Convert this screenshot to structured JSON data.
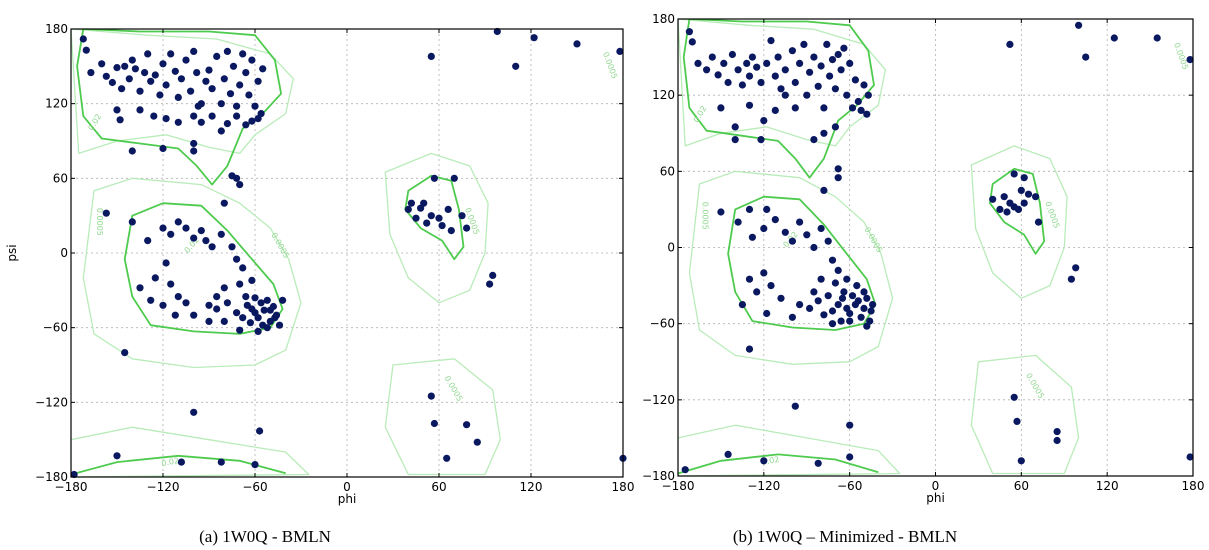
{
  "chart_data": [
    {
      "type": "scatter",
      "caption": "(a) 1W0Q - BMLN",
      "xlabel": "phi",
      "ylabel": "psi",
      "xlim": [
        -180,
        180
      ],
      "ylim": [
        -180,
        180
      ],
      "xticks": [
        -180,
        -120,
        -60,
        0,
        60,
        120,
        180
      ],
      "yticks": [
        -180,
        -120,
        -60,
        0,
        60,
        120,
        180
      ],
      "grid": true,
      "contour_labels": [
        "0.02",
        "0.0005"
      ],
      "colors": {
        "points": "#0a1860",
        "contour_inner": "#4ecb4e",
        "contour_outer": "#b9ecb9"
      },
      "points": [
        [
          -172,
          172
        ],
        [
          -170,
          163
        ],
        [
          -167,
          145
        ],
        [
          -160,
          152
        ],
        [
          -157,
          142
        ],
        [
          -153,
          137
        ],
        [
          -150,
          149
        ],
        [
          -147,
          132
        ],
        [
          -145,
          150
        ],
        [
          -142,
          140
        ],
        [
          -140,
          155
        ],
        [
          -138,
          148
        ],
        [
          -135,
          130
        ],
        [
          -132,
          145
        ],
        [
          -130,
          160
        ],
        [
          -128,
          138
        ],
        [
          -125,
          143
        ],
        [
          -122,
          127
        ],
        [
          -120,
          152
        ],
        [
          -118,
          135
        ],
        [
          -115,
          160
        ],
        [
          -112,
          146
        ],
        [
          -110,
          125
        ],
        [
          -108,
          140
        ],
        [
          -105,
          155
        ],
        [
          -102,
          130
        ],
        [
          -100,
          162
        ],
        [
          -98,
          145
        ],
        [
          -95,
          120
        ],
        [
          -92,
          138
        ],
        [
          -90,
          147
        ],
        [
          -88,
          132
        ],
        [
          -85,
          158
        ],
        [
          -82,
          120
        ],
        [
          -80,
          140
        ],
        [
          -78,
          162
        ],
        [
          -76,
          128
        ],
        [
          -74,
          150
        ],
        [
          -72,
          118
        ],
        [
          -70,
          135
        ],
        [
          -68,
          160
        ],
        [
          -66,
          145
        ],
        [
          -64,
          127
        ],
        [
          -62,
          155
        ],
        [
          -60,
          118
        ],
        [
          -58,
          138
        ],
        [
          -56,
          112
        ],
        [
          -55,
          148
        ],
        [
          -72,
          110
        ],
        [
          -66,
          103
        ],
        [
          -62,
          106
        ],
        [
          -58,
          108
        ],
        [
          -100,
          110
        ],
        [
          -95,
          105
        ],
        [
          -110,
          105
        ],
        [
          -118,
          108
        ],
        [
          -126,
          110
        ],
        [
          -135,
          115
        ],
        [
          -148,
          107
        ],
        [
          -150,
          115
        ],
        [
          -97,
          118
        ],
        [
          -88,
          110
        ],
        [
          -78,
          104
        ],
        [
          -82,
          98
        ],
        [
          -100,
          88
        ],
        [
          -100,
          82
        ],
        [
          -120,
          84
        ],
        [
          -140,
          82
        ],
        [
          -75,
          62
        ],
        [
          -72,
          60
        ],
        [
          -70,
          55
        ],
        [
          -80,
          40
        ],
        [
          -157,
          32
        ],
        [
          -140,
          25
        ],
        [
          -130,
          10
        ],
        [
          -120,
          20
        ],
        [
          -115,
          15
        ],
        [
          -110,
          25
        ],
        [
          -105,
          20
        ],
        [
          -100,
          12
        ],
        [
          -95,
          18
        ],
        [
          -92,
          10
        ],
        [
          -88,
          5
        ],
        [
          -82,
          15
        ],
        [
          -75,
          5
        ],
        [
          -72,
          -5
        ],
        [
          -68,
          -12
        ],
        [
          -62,
          -22
        ],
        [
          -70,
          -25
        ],
        [
          -80,
          -28
        ],
        [
          -85,
          -35
        ],
        [
          -90,
          -42
        ],
        [
          -100,
          -50
        ],
        [
          -105,
          -40
        ],
        [
          -110,
          -35
        ],
        [
          -115,
          -25
        ],
        [
          -118,
          -8
        ],
        [
          -125,
          -20
        ],
        [
          -128,
          -38
        ],
        [
          -135,
          -28
        ],
        [
          -120,
          -42
        ],
        [
          -112,
          -50
        ],
        [
          -90,
          -55
        ],
        [
          -85,
          -45
        ],
        [
          -78,
          -40
        ],
        [
          -72,
          -48
        ],
        [
          -68,
          -52
        ],
        [
          -65,
          -42
        ],
        [
          -62,
          -45
        ],
        [
          -60,
          -48
        ],
        [
          -58,
          -52
        ],
        [
          -56,
          -40
        ],
        [
          -54,
          -46
        ],
        [
          -52,
          -38
        ],
        [
          -50,
          -55
        ],
        [
          -48,
          -43
        ],
        [
          -46,
          -50
        ],
        [
          -44,
          -58
        ],
        [
          -60,
          -36
        ],
        [
          -63,
          -56
        ],
        [
          -55,
          -58
        ],
        [
          -50,
          -46
        ],
        [
          -47,
          -52
        ],
        [
          -52,
          -60
        ],
        [
          -42,
          -38
        ],
        [
          -58,
          -63
        ],
        [
          -66,
          -35
        ],
        [
          -70,
          -62
        ],
        [
          -80,
          -55
        ],
        [
          -145,
          -80
        ],
        [
          40,
          35
        ],
        [
          42,
          40
        ],
        [
          45,
          28
        ],
        [
          48,
          36
        ],
        [
          50,
          40
        ],
        [
          52,
          24
        ],
        [
          55,
          30
        ],
        [
          57,
          60
        ],
        [
          60,
          28
        ],
        [
          62,
          22
        ],
        [
          66,
          35
        ],
        [
          70,
          60
        ],
        [
          75,
          30
        ],
        [
          68,
          18
        ],
        [
          78,
          20
        ],
        [
          55,
          158
        ],
        [
          98,
          178
        ],
        [
          110,
          150
        ],
        [
          122,
          173
        ],
        [
          150,
          168
        ],
        [
          178,
          162
        ],
        [
          95,
          -18
        ],
        [
          93,
          -25
        ],
        [
          -100,
          -128
        ],
        [
          -57,
          -143
        ],
        [
          -150,
          -163
        ],
        [
          -108,
          -168
        ],
        [
          -82,
          -168
        ],
        [
          -60,
          -170
        ],
        [
          -178,
          -178
        ],
        [
          55,
          -115
        ],
        [
          57,
          -137
        ],
        [
          65,
          -165
        ],
        [
          78,
          -138
        ],
        [
          85,
          -152
        ],
        [
          180,
          -165
        ]
      ]
    },
    {
      "type": "scatter",
      "caption": "(b) 1W0Q – Minimized - BMLN",
      "xlabel": "phi",
      "ylabel": "",
      "xlim": [
        -180,
        180
      ],
      "ylim": [
        -180,
        180
      ],
      "xticks": [
        -180,
        -120,
        -60,
        0,
        60,
        120,
        180
      ],
      "yticks": [
        -180,
        -120,
        -60,
        0,
        60,
        120,
        180
      ],
      "grid": true,
      "contour_labels": [
        "0.02",
        "0.0005"
      ],
      "colors": {
        "points": "#0a1860",
        "contour_inner": "#4ecb4e",
        "contour_outer": "#b9ecb9"
      },
      "points": [
        [
          -172,
          170
        ],
        [
          -170,
          162
        ],
        [
          -166,
          145
        ],
        [
          -160,
          140
        ],
        [
          -156,
          150
        ],
        [
          -152,
          136
        ],
        [
          -148,
          145
        ],
        [
          -145,
          130
        ],
        [
          -142,
          152
        ],
        [
          -138,
          140
        ],
        [
          -135,
          128
        ],
        [
          -132,
          145
        ],
        [
          -130,
          135
        ],
        [
          -128,
          150
        ],
        [
          -125,
          142
        ],
        [
          -122,
          130
        ],
        [
          -118,
          145
        ],
        [
          -115,
          163
        ],
        [
          -112,
          135
        ],
        [
          -110,
          150
        ],
        [
          -108,
          125
        ],
        [
          -105,
          140
        ],
        [
          -100,
          155
        ],
        [
          -98,
          130
        ],
        [
          -95,
          145
        ],
        [
          -92,
          160
        ],
        [
          -90,
          120
        ],
        [
          -88,
          138
        ],
        [
          -85,
          150
        ],
        [
          -82,
          127
        ],
        [
          -80,
          143
        ],
        [
          -78,
          110
        ],
        [
          -76,
          160
        ],
        [
          -74,
          135
        ],
        [
          -72,
          148
        ],
        [
          -70,
          125
        ],
        [
          -68,
          152
        ],
        [
          -66,
          140
        ],
        [
          -64,
          157
        ],
        [
          -62,
          120
        ],
        [
          -60,
          145
        ],
        [
          -58,
          110
        ],
        [
          -56,
          132
        ],
        [
          -54,
          115
        ],
        [
          -52,
          108
        ],
        [
          -50,
          128
        ],
        [
          -48,
          105
        ],
        [
          -47,
          120
        ],
        [
          -70,
          95
        ],
        [
          -78,
          90
        ],
        [
          -85,
          85
        ],
        [
          -98,
          110
        ],
        [
          -105,
          120
        ],
        [
          -112,
          108
        ],
        [
          -120,
          100
        ],
        [
          -130,
          112
        ],
        [
          -140,
          95
        ],
        [
          -150,
          110
        ],
        [
          -122,
          85
        ],
        [
          -140,
          85
        ],
        [
          -68,
          62
        ],
        [
          -68,
          55
        ],
        [
          -78,
          45
        ],
        [
          -150,
          28
        ],
        [
          -138,
          20
        ],
        [
          -130,
          30
        ],
        [
          -128,
          8
        ],
        [
          -120,
          15
        ],
        [
          -118,
          30
        ],
        [
          -112,
          22
        ],
        [
          -105,
          12
        ],
        [
          -100,
          5
        ],
        [
          -95,
          20
        ],
        [
          -90,
          10
        ],
        [
          -85,
          0
        ],
        [
          -80,
          15
        ],
        [
          -75,
          5
        ],
        [
          -72,
          -10
        ],
        [
          -68,
          -18
        ],
        [
          -62,
          -25
        ],
        [
          -70,
          -28
        ],
        [
          -80,
          -25
        ],
        [
          -85,
          -35
        ],
        [
          -95,
          -45
        ],
        [
          -100,
          -55
        ],
        [
          -108,
          -40
        ],
        [
          -115,
          -30
        ],
        [
          -120,
          -20
        ],
        [
          -125,
          -35
        ],
        [
          -130,
          -25
        ],
        [
          -135,
          -45
        ],
        [
          -118,
          -52
        ],
        [
          -88,
          -48
        ],
        [
          -82,
          -42
        ],
        [
          -75,
          -38
        ],
        [
          -72,
          -50
        ],
        [
          -68,
          -45
        ],
        [
          -65,
          -40
        ],
        [
          -62,
          -48
        ],
        [
          -60,
          -52
        ],
        [
          -58,
          -38
        ],
        [
          -56,
          -45
        ],
        [
          -54,
          -42
        ],
        [
          -52,
          -55
        ],
        [
          -50,
          -48
        ],
        [
          -48,
          -40
        ],
        [
          -46,
          -58
        ],
        [
          -60,
          -58
        ],
        [
          -64,
          -35
        ],
        [
          -55,
          -30
        ],
        [
          -50,
          -35
        ],
        [
          -45,
          -50
        ],
        [
          -66,
          -58
        ],
        [
          -44,
          -45
        ],
        [
          -48,
          -62
        ],
        [
          -72,
          -60
        ],
        [
          -78,
          -53
        ],
        [
          -130,
          -80
        ],
        [
          40,
          38
        ],
        [
          45,
          30
        ],
        [
          48,
          40
        ],
        [
          50,
          28
        ],
        [
          52,
          35
        ],
        [
          55,
          32
        ],
        [
          58,
          30
        ],
        [
          60,
          45
        ],
        [
          62,
          35
        ],
        [
          65,
          42
        ],
        [
          70,
          40
        ],
        [
          72,
          20
        ],
        [
          55,
          58
        ],
        [
          62,
          55
        ],
        [
          52,
          160
        ],
        [
          100,
          175
        ],
        [
          105,
          150
        ],
        [
          125,
          165
        ],
        [
          155,
          165
        ],
        [
          178,
          148
        ],
        [
          98,
          -16
        ],
        [
          95,
          -25
        ],
        [
          -98,
          -125
        ],
        [
          -60,
          -140
        ],
        [
          -145,
          -163
        ],
        [
          -120,
          -168
        ],
        [
          -82,
          -170
        ],
        [
          -60,
          -165
        ],
        [
          -175,
          -175
        ],
        [
          55,
          -118
        ],
        [
          57,
          -137
        ],
        [
          60,
          -168
        ],
        [
          85,
          -145
        ],
        [
          85,
          -152
        ],
        [
          178,
          -165
        ]
      ]
    }
  ]
}
